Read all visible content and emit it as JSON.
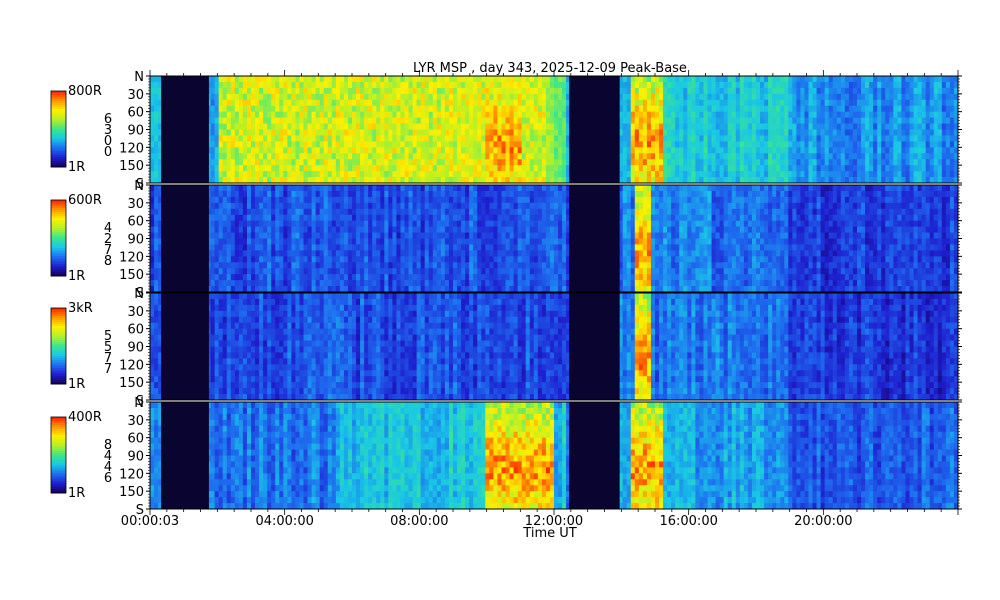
{
  "chart_data": {
    "type": "heatmap",
    "title": "LYR MSP , day 343, 2025-12-09 Peak-Base",
    "xlabel": "Time UT",
    "x_ticks": [
      "00:00:03",
      "04:00:00",
      "08:00:00",
      "12:00:00",
      "16:00:00",
      "20:00:00"
    ],
    "x_range_hours": [
      0,
      24
    ],
    "y_range_deg": [
      0,
      180
    ],
    "y_ticks": [
      "N",
      "30",
      "60",
      "90",
      "120",
      "150",
      "S"
    ],
    "data_gaps_hours": [
      [
        0.33,
        1.75
      ],
      [
        12.45,
        13.95
      ]
    ],
    "panels": [
      {
        "scale_max": "800R",
        "scale_min": "1R",
        "wavelength_digits": [
          "6",
          "3",
          "0",
          "0"
        ],
        "color_level": "high",
        "features": [
          {
            "t": [
              2.0,
              11.8
            ],
            "level": "green-yellow background"
          },
          {
            "t": [
              9.9,
              11.0
            ],
            "level": "red peak"
          },
          {
            "t": [
              14.3,
              15.2
            ],
            "level": "red/orange arc"
          }
        ]
      },
      {
        "scale_max": "600R",
        "scale_min": "1R",
        "wavelength_digits": [
          "4",
          "2",
          "7",
          "8"
        ],
        "color_level": "low",
        "features": [
          {
            "t": [
              14.4,
              14.9
            ],
            "level": "red/orange arc"
          }
        ]
      },
      {
        "scale_max": "3kR",
        "scale_min": "1R",
        "wavelength_digits": [
          "5",
          "5",
          "7",
          "7"
        ],
        "color_level": "low",
        "features": [
          {
            "t": [
              14.4,
              14.9
            ],
            "level": "red arc"
          }
        ]
      },
      {
        "scale_max": "400R",
        "scale_min": "1R",
        "wavelength_digits": [
          "8",
          "4",
          "4",
          "6"
        ],
        "color_level": "medium",
        "features": [
          {
            "t": [
              10.0,
              12.0
            ],
            "level": "yellow/red"
          },
          {
            "t": [
              14.3,
              15.2
            ],
            "level": "red/orange arc"
          }
        ]
      }
    ],
    "colormap": [
      "#14005a",
      "#1f1fd0",
      "#1e6ff0",
      "#19c8e6",
      "#3ce68c",
      "#b4f028",
      "#fff000",
      "#ff9600",
      "#ff1e00"
    ],
    "colors": {
      "gap": "#0a0530",
      "frame": "#000000"
    }
  }
}
